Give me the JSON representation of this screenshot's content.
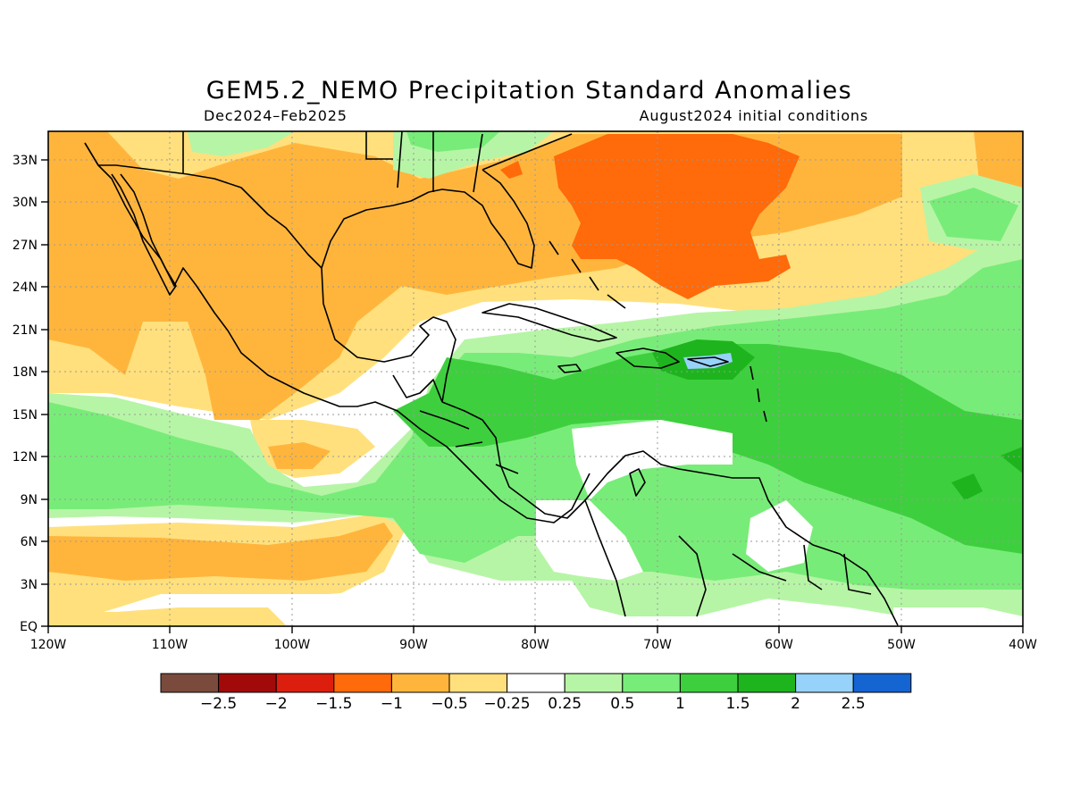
{
  "header": {
    "title": "GEM5.2_NEMO Precipitation Standard Anomalies",
    "period": "Dec2024–Feb2025",
    "init": "August2024 initial conditions"
  },
  "map": {
    "lat_labels": [
      "33N",
      "30N",
      "27N",
      "24N",
      "21N",
      "18N",
      "15N",
      "12N",
      "9N",
      "6N",
      "3N",
      "EQ"
    ],
    "lon_labels": [
      "120W",
      "110W",
      "100W",
      "90W",
      "80W",
      "70W",
      "60W",
      "50W",
      "40W"
    ]
  },
  "colorbar": {
    "colors": [
      "#7a4b3c",
      "#a20a0a",
      "#dc1e0e",
      "#ff6a0a",
      "#ffb53c",
      "#ffe07c",
      "#ffffff",
      "#b6f5a6",
      "#78ec78",
      "#3ecf3e",
      "#1eb41e",
      "#96d2fa",
      "#1464d2"
    ],
    "labels": [
      "−2.5",
      "−2",
      "−1.5",
      "−1",
      "−0.5",
      "−0.25",
      "0.25",
      "0.5",
      "1",
      "1.5",
      "2",
      "2.5"
    ]
  },
  "palette": {
    "frame": "#000000",
    "grid": "#9a9a9a",
    "coast": "#000000"
  }
}
